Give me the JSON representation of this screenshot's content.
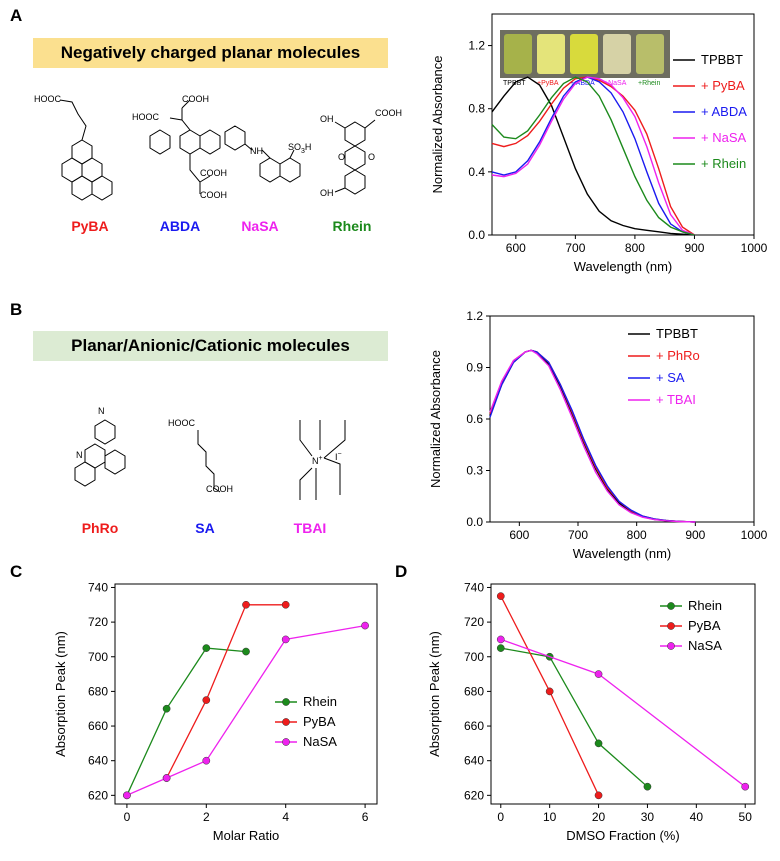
{
  "panels": {
    "a": "A",
    "b": "B",
    "c": "C",
    "d": "D"
  },
  "banners": {
    "a": "Negatively charged planar molecules",
    "b": "Planar/Anionic/Cationic molecules"
  },
  "colors": {
    "red": "#ee1c1c",
    "blue": "#1a1af0",
    "magenta": "#ee22ee",
    "green": "#1c8a1c",
    "black": "#000000",
    "banner_a": "#fbe08f",
    "banner_b": "#dcebd3"
  },
  "molecules_a": [
    {
      "name": "PyBA",
      "color": "#ee1c1c"
    },
    {
      "name": "ABDA",
      "color": "#1a1af0"
    },
    {
      "name": "NaSA",
      "color": "#ee22ee"
    },
    {
      "name": "Rhein",
      "color": "#1c8a1c"
    }
  ],
  "molecules_b": [
    {
      "name": "PhRo",
      "color": "#ee1c1c"
    },
    {
      "name": "SA",
      "color": "#1a1af0"
    },
    {
      "name": "TBAI",
      "color": "#ee22ee"
    }
  ],
  "structure_text": {
    "hooc": "HOOC",
    "cooh": "COOH",
    "nh": "NH",
    "so3h": "SO",
    "so3h_sub": "3",
    "so3h_end": "H",
    "oh": "OH",
    "o": "O",
    "n": "N",
    "nplus": "N",
    "plus": "+",
    "iodide": "I",
    "minus": "−"
  },
  "vial_labels": [
    {
      "text": "TPBBT",
      "color": "#000000"
    },
    {
      "text": "+PyBA",
      "color": "#ee1c1c"
    },
    {
      "text": "+ ABDA",
      "color": "#1a1af0"
    },
    {
      "text": "+NaSA",
      "color": "#ee22ee"
    },
    {
      "text": "+Rhein",
      "color": "#1c8a1c"
    }
  ],
  "chart_data": [
    {
      "id": "A",
      "type": "line",
      "xlabel": "Wavelength (nm)",
      "ylabel": "Normalized Absorbance",
      "xlim": [
        560,
        1000
      ],
      "ylim": [
        0,
        1.4
      ],
      "xticks": [
        600,
        700,
        800,
        900,
        1000
      ],
      "yticks": [
        0.0,
        0.4,
        0.8,
        1.2
      ],
      "legend": "right",
      "series": [
        {
          "name": "TPBBT",
          "color": "#000000",
          "x": [
            560,
            580,
            600,
            620,
            640,
            660,
            680,
            700,
            720,
            740,
            760,
            780,
            800,
            820,
            840,
            860,
            880,
            900
          ],
          "y": [
            0.78,
            0.88,
            0.97,
            1.0,
            0.95,
            0.82,
            0.62,
            0.42,
            0.26,
            0.15,
            0.09,
            0.06,
            0.04,
            0.03,
            0.02,
            0.01,
            0.005,
            0.0
          ]
        },
        {
          "name": "+ PyBA",
          "color": "#ee1c1c",
          "x": [
            560,
            580,
            600,
            620,
            640,
            660,
            680,
            700,
            720,
            740,
            760,
            780,
            800,
            820,
            840,
            860,
            880,
            900
          ],
          "y": [
            0.58,
            0.56,
            0.58,
            0.63,
            0.72,
            0.83,
            0.93,
            0.99,
            1.0,
            0.98,
            0.94,
            0.88,
            0.79,
            0.64,
            0.42,
            0.18,
            0.05,
            0.0
          ]
        },
        {
          "name": "+ ABDA",
          "color": "#1a1af0",
          "x": [
            560,
            580,
            600,
            620,
            640,
            660,
            680,
            700,
            720,
            740,
            760,
            780,
            800,
            820,
            840,
            860,
            880,
            900
          ],
          "y": [
            0.4,
            0.38,
            0.4,
            0.47,
            0.59,
            0.74,
            0.88,
            0.97,
            1.0,
            0.97,
            0.9,
            0.78,
            0.61,
            0.4,
            0.2,
            0.07,
            0.02,
            0.0
          ]
        },
        {
          "name": "+ NaSA",
          "color": "#ee22ee",
          "x": [
            560,
            580,
            600,
            620,
            640,
            660,
            680,
            700,
            720,
            740,
            760,
            780,
            800,
            820,
            840,
            860,
            880,
            900
          ],
          "y": [
            0.38,
            0.37,
            0.39,
            0.45,
            0.57,
            0.72,
            0.86,
            0.96,
            1.0,
            0.99,
            0.95,
            0.87,
            0.75,
            0.56,
            0.33,
            0.13,
            0.03,
            0.0
          ]
        },
        {
          "name": "+ Rhein",
          "color": "#1c8a1c",
          "x": [
            560,
            580,
            600,
            620,
            640,
            660,
            680,
            700,
            720,
            740,
            760,
            780,
            800,
            820,
            840,
            860,
            880,
            900
          ],
          "y": [
            0.7,
            0.62,
            0.61,
            0.66,
            0.76,
            0.87,
            0.96,
            1.0,
            0.97,
            0.88,
            0.73,
            0.55,
            0.37,
            0.22,
            0.11,
            0.05,
            0.02,
            0.0
          ]
        }
      ]
    },
    {
      "id": "B",
      "type": "line",
      "xlabel": "Wavelength (nm)",
      "ylabel": "Normalized Absorbance",
      "xlim": [
        550,
        1000
      ],
      "ylim": [
        0,
        1.2
      ],
      "xticks": [
        600,
        700,
        800,
        900,
        1000
      ],
      "yticks": [
        0.0,
        0.3,
        0.6,
        0.9,
        1.2
      ],
      "legend": "top-right",
      "series": [
        {
          "name": "TPBBT",
          "color": "#000000",
          "x": [
            550,
            570,
            590,
            610,
            620,
            630,
            650,
            670,
            690,
            710,
            730,
            750,
            770,
            790,
            810,
            830,
            850,
            870,
            890,
            900
          ],
          "y": [
            0.62,
            0.8,
            0.93,
            0.99,
            1.0,
            0.99,
            0.92,
            0.79,
            0.63,
            0.46,
            0.31,
            0.19,
            0.11,
            0.06,
            0.03,
            0.015,
            0.008,
            0.004,
            0.001,
            0.0
          ]
        },
        {
          "name": "+ PhRo",
          "color": "#ee1c1c",
          "x": [
            550,
            570,
            590,
            610,
            620,
            630,
            650,
            670,
            690,
            710,
            730,
            750,
            770,
            790,
            810,
            830,
            850,
            870,
            890,
            900
          ],
          "y": [
            0.63,
            0.81,
            0.94,
            0.99,
            1.0,
            0.99,
            0.93,
            0.8,
            0.64,
            0.47,
            0.32,
            0.2,
            0.12,
            0.065,
            0.035,
            0.018,
            0.009,
            0.004,
            0.001,
            0.0
          ]
        },
        {
          "name": "+ SA",
          "color": "#1a1af0",
          "x": [
            550,
            570,
            590,
            610,
            620,
            630,
            650,
            670,
            690,
            710,
            730,
            750,
            770,
            790,
            810,
            830,
            850,
            870,
            890,
            900
          ],
          "y": [
            0.61,
            0.8,
            0.93,
            0.99,
            1.0,
            0.99,
            0.93,
            0.8,
            0.65,
            0.48,
            0.33,
            0.21,
            0.12,
            0.07,
            0.035,
            0.018,
            0.009,
            0.004,
            0.001,
            0.0
          ]
        },
        {
          "name": "+ TBAI",
          "color": "#ee22ee",
          "x": [
            550,
            570,
            590,
            610,
            620,
            630,
            650,
            670,
            690,
            710,
            730,
            750,
            770,
            790,
            810,
            830,
            850,
            870,
            890,
            900
          ],
          "y": [
            0.64,
            0.82,
            0.94,
            0.99,
            1.0,
            0.98,
            0.91,
            0.77,
            0.61,
            0.44,
            0.29,
            0.18,
            0.1,
            0.055,
            0.028,
            0.014,
            0.007,
            0.003,
            0.001,
            0.0
          ]
        }
      ]
    },
    {
      "id": "C",
      "type": "line",
      "xlabel": "Molar Ratio",
      "ylabel": "Absorption Peak (nm)",
      "xlim": [
        -0.3,
        6.3
      ],
      "ylim": [
        615,
        742
      ],
      "xticks": [
        0,
        2,
        4,
        6
      ],
      "yticks": [
        620,
        640,
        660,
        680,
        700,
        720,
        740
      ],
      "legend": "bottom-right",
      "series": [
        {
          "name": "Rhein",
          "color": "#1c8a1c",
          "x": [
            0,
            1,
            2,
            3
          ],
          "y": [
            620,
            670,
            705,
            703
          ]
        },
        {
          "name": "PyBA",
          "color": "#ee1c1c",
          "x": [
            1,
            2,
            3,
            4
          ],
          "y": [
            630,
            675,
            730,
            730
          ]
        },
        {
          "name": "NaSA",
          "color": "#ee22ee",
          "x": [
            0,
            1,
            2,
            4,
            6
          ],
          "y": [
            620,
            630,
            640,
            710,
            718
          ]
        }
      ]
    },
    {
      "id": "D",
      "type": "line",
      "xlabel": "DMSO Fraction (%)",
      "ylabel": "Absorption Peak (nm)",
      "xlim": [
        -2,
        52
      ],
      "ylim": [
        615,
        742
      ],
      "xticks": [
        0,
        10,
        20,
        30,
        40,
        50
      ],
      "yticks": [
        620,
        640,
        660,
        680,
        700,
        720,
        740
      ],
      "legend": "top-right",
      "series": [
        {
          "name": "Rhein",
          "color": "#1c8a1c",
          "x": [
            0,
            10,
            20,
            30
          ],
          "y": [
            705,
            700,
            650,
            625
          ]
        },
        {
          "name": "PyBA",
          "color": "#ee1c1c",
          "x": [
            0,
            10,
            20
          ],
          "y": [
            735,
            680,
            620
          ]
        },
        {
          "name": "NaSA",
          "color": "#ee22ee",
          "x": [
            0,
            20,
            50
          ],
          "y": [
            710,
            690,
            625
          ]
        }
      ]
    }
  ]
}
